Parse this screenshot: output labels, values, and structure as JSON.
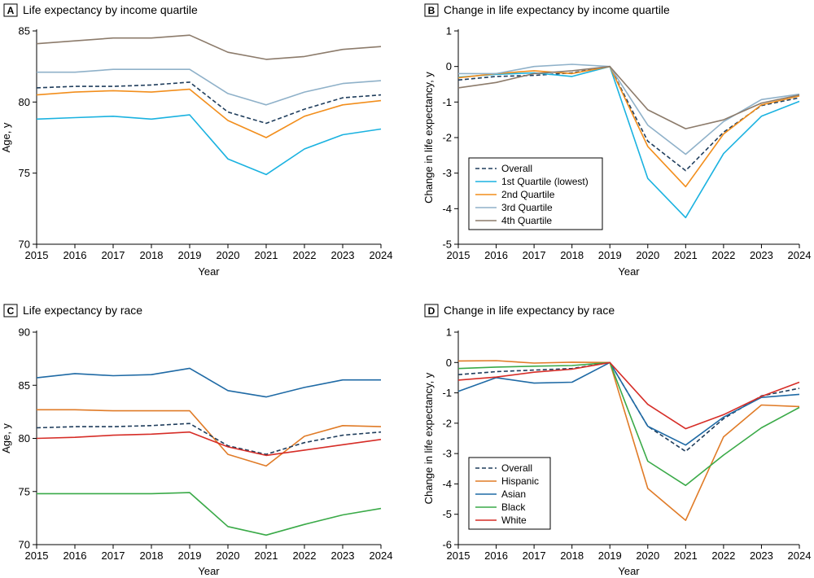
{
  "figure": {
    "background": "#ffffff"
  },
  "chart_data": [
    {
      "panel": "A",
      "type": "line",
      "title": "Life expectancy by income quartile",
      "xlabel": "Year",
      "ylabel": "Age, y",
      "x": [
        2015,
        2016,
        2017,
        2018,
        2019,
        2020,
        2021,
        2022,
        2023,
        2024
      ],
      "xticks": [
        "2015",
        "2016",
        "2017",
        "2018",
        "2019",
        "2020",
        "2021",
        "2022",
        "2023",
        "2024"
      ],
      "ylim": [
        70,
        85
      ],
      "yticks": [
        70,
        75,
        80,
        85
      ],
      "ytick_labels": [
        "70",
        "75",
        "80",
        "85"
      ],
      "legend": null,
      "series": [
        {
          "name": "4th Quartile",
          "color": "#8c7b6b",
          "dashed": false,
          "values": [
            84.1,
            84.3,
            84.5,
            84.5,
            84.7,
            83.5,
            83.0,
            83.2,
            83.7,
            83.9
          ]
        },
        {
          "name": "3rd Quartile",
          "color": "#8fb1c9",
          "dashed": false,
          "values": [
            82.1,
            82.1,
            82.3,
            82.3,
            82.3,
            80.6,
            79.8,
            80.7,
            81.3,
            81.5
          ]
        },
        {
          "name": "Overall",
          "color": "#1f3d5c",
          "dashed": true,
          "values": [
            81.0,
            81.1,
            81.1,
            81.2,
            81.4,
            79.3,
            78.5,
            79.5,
            80.3,
            80.5
          ]
        },
        {
          "name": "2nd Quartile",
          "color": "#f28e1c",
          "dashed": false,
          "values": [
            80.5,
            80.7,
            80.8,
            80.7,
            80.9,
            78.7,
            77.5,
            79.0,
            79.8,
            80.1
          ]
        },
        {
          "name": "1st Quartile (lowest)",
          "color": "#1ab2e0",
          "dashed": false,
          "values": [
            78.8,
            78.9,
            79.0,
            78.8,
            79.1,
            76.0,
            74.9,
            76.7,
            77.7,
            78.1
          ]
        }
      ]
    },
    {
      "panel": "B",
      "type": "line",
      "title": "Change in life expectancy by income quartile",
      "xlabel": "Year",
      "ylabel": "Change in life expectancy, y",
      "x": [
        2015,
        2016,
        2017,
        2018,
        2019,
        2020,
        2021,
        2022,
        2023,
        2024
      ],
      "xticks": [
        "2015",
        "2016",
        "2017",
        "2018",
        "2019",
        "2020",
        "2021",
        "2022",
        "2023",
        "2024"
      ],
      "ylim": [
        -5,
        1
      ],
      "yticks": [
        -5,
        -4,
        -3,
        -2,
        -1,
        0,
        1
      ],
      "ytick_labels": [
        "-5",
        "-4",
        "-3",
        "-2",
        "-1",
        "0",
        "1"
      ],
      "legend": "lower-left",
      "series": [
        {
          "name": "Overall",
          "color": "#1f3d5c",
          "dashed": true,
          "values": [
            -0.38,
            -0.28,
            -0.25,
            -0.18,
            0,
            -2.1,
            -2.93,
            -1.85,
            -1.1,
            -0.88
          ]
        },
        {
          "name": "1st Quartile (lowest)",
          "color": "#1ab2e0",
          "dashed": false,
          "values": [
            -0.3,
            -0.22,
            -0.18,
            -0.28,
            0,
            -3.15,
            -4.25,
            -2.45,
            -1.4,
            -0.98
          ]
        },
        {
          "name": "2nd Quartile",
          "color": "#f28e1c",
          "dashed": false,
          "values": [
            -0.32,
            -0.2,
            -0.12,
            -0.2,
            0,
            -2.25,
            -3.38,
            -1.9,
            -1.08,
            -0.83
          ]
        },
        {
          "name": "3rd Quartile",
          "color": "#8fb1c9",
          "dashed": false,
          "values": [
            -0.2,
            -0.2,
            0,
            0.06,
            0,
            -1.65,
            -2.47,
            -1.55,
            -0.93,
            -0.78
          ]
        },
        {
          "name": "4th Quartile",
          "color": "#8c7b6b",
          "dashed": false,
          "values": [
            -0.6,
            -0.45,
            -0.2,
            -0.12,
            0,
            -1.22,
            -1.75,
            -1.5,
            -1.03,
            -0.8
          ]
        }
      ]
    },
    {
      "panel": "C",
      "type": "line",
      "title": "Life expectancy by race",
      "xlabel": "Year",
      "ylabel": "Age, y",
      "x": [
        2015,
        2016,
        2017,
        2018,
        2019,
        2020,
        2021,
        2022,
        2023,
        2024
      ],
      "xticks": [
        "2015",
        "2016",
        "2017",
        "2018",
        "2019",
        "2020",
        "2021",
        "2022",
        "2023",
        "2024"
      ],
      "ylim": [
        70,
        90
      ],
      "yticks": [
        70,
        75,
        80,
        85,
        90
      ],
      "ytick_labels": [
        "70",
        "75",
        "80",
        "85",
        "90"
      ],
      "legend": null,
      "series": [
        {
          "name": "Asian",
          "color": "#1f6aa5",
          "dashed": false,
          "values": [
            85.7,
            86.1,
            85.9,
            86.0,
            86.6,
            84.5,
            83.9,
            84.8,
            85.5,
            85.5
          ]
        },
        {
          "name": "Hispanic",
          "color": "#e07b27",
          "dashed": false,
          "values": [
            82.7,
            82.7,
            82.6,
            82.6,
            82.6,
            78.5,
            77.4,
            80.2,
            81.2,
            81.1
          ]
        },
        {
          "name": "Overall",
          "color": "#1f3d5c",
          "dashed": true,
          "values": [
            81.0,
            81.1,
            81.1,
            81.2,
            81.4,
            79.3,
            78.5,
            79.6,
            80.3,
            80.6
          ]
        },
        {
          "name": "White",
          "color": "#d62d27",
          "dashed": false,
          "values": [
            80.0,
            80.1,
            80.3,
            80.4,
            80.6,
            79.2,
            78.4,
            78.9,
            79.4,
            79.9
          ]
        },
        {
          "name": "Black",
          "color": "#3aaa48",
          "dashed": false,
          "values": [
            74.8,
            74.8,
            74.8,
            74.8,
            74.9,
            71.7,
            70.9,
            71.9,
            72.8,
            73.4
          ]
        }
      ]
    },
    {
      "panel": "D",
      "type": "line",
      "title": "Change in life expectancy by race",
      "xlabel": "Year",
      "ylabel": "Change in life expectancy, y",
      "x": [
        2015,
        2016,
        2017,
        2018,
        2019,
        2020,
        2021,
        2022,
        2023,
        2024
      ],
      "xticks": [
        "2015",
        "2016",
        "2017",
        "2018",
        "2019",
        "2020",
        "2021",
        "2022",
        "2023",
        "2024"
      ],
      "ylim": [
        -6,
        1
      ],
      "yticks": [
        -6,
        -5,
        -4,
        -3,
        -2,
        -1,
        0,
        1
      ],
      "ytick_labels": [
        "-6",
        "-5",
        "-4",
        "-3",
        "-2",
        "-1",
        "0",
        "1"
      ],
      "legend": "lower-left",
      "series": [
        {
          "name": "Overall",
          "color": "#1f3d5c",
          "dashed": true,
          "values": [
            -0.4,
            -0.3,
            -0.25,
            -0.2,
            0,
            -2.1,
            -2.93,
            -1.85,
            -1.1,
            -0.85
          ]
        },
        {
          "name": "Hispanic",
          "color": "#e07b27",
          "dashed": false,
          "values": [
            0.05,
            0.06,
            -0.02,
            0.01,
            0,
            -4.15,
            -5.2,
            -2.45,
            -1.4,
            -1.45
          ]
        },
        {
          "name": "Asian",
          "color": "#1f6aa5",
          "dashed": false,
          "values": [
            -0.95,
            -0.5,
            -0.68,
            -0.65,
            0,
            -2.1,
            -2.72,
            -1.8,
            -1.15,
            -1.05
          ]
        },
        {
          "name": "Black",
          "color": "#3aaa48",
          "dashed": false,
          "values": [
            -0.2,
            -0.15,
            -0.12,
            -0.1,
            0,
            -3.25,
            -4.05,
            -3.05,
            -2.15,
            -1.48
          ]
        },
        {
          "name": "White",
          "color": "#d62d27",
          "dashed": false,
          "values": [
            -0.58,
            -0.48,
            -0.32,
            -0.22,
            0,
            -1.38,
            -2.18,
            -1.72,
            -1.12,
            -0.65
          ]
        }
      ]
    }
  ]
}
